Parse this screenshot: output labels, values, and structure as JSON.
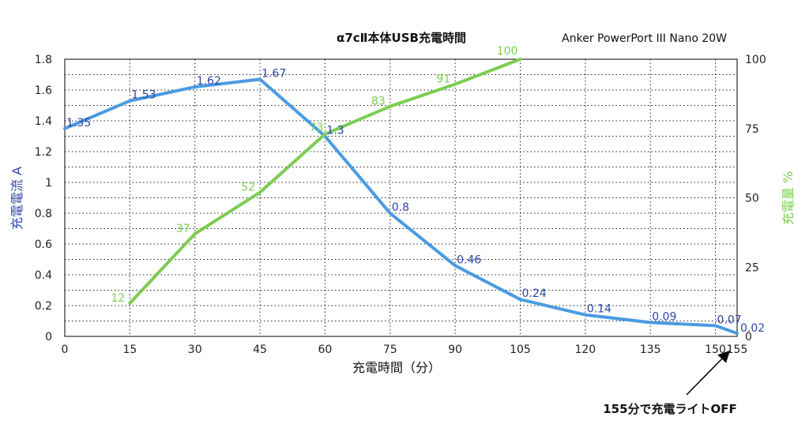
{
  "chart_data": {
    "type": "line",
    "title": "α7cⅡ本体USB充電時間",
    "subtitle": "Anker PowerPort III Nano 20W",
    "xlabel": "充電時間（分）",
    "ylabel_left": "充電電流 A",
    "ylabel_right": "充電量 %",
    "xlim": [
      0,
      155
    ],
    "ylim_left": [
      0,
      1.8
    ],
    "ylim_right": [
      0,
      100
    ],
    "x_ticks": [
      0,
      15,
      30,
      45,
      60,
      75,
      90,
      105,
      120,
      135,
      150,
      155
    ],
    "y_ticks_left": [
      "0",
      "0.2",
      "0.4",
      "0.6",
      "0.8",
      "1",
      "1.2",
      "1.4",
      "1.6",
      "1.8"
    ],
    "y_ticks_right": [
      "0",
      "25",
      "50",
      "75",
      "100"
    ],
    "grid": true,
    "series": [
      {
        "axis": "left",
        "color": "#4a9be2",
        "label_color": "#2e46a8",
        "x": [
          0,
          15,
          30,
          45,
          60,
          75,
          90,
          105,
          120,
          135,
          150,
          155
        ],
        "values": [
          1.35,
          1.53,
          1.62,
          1.67,
          1.3,
          0.8,
          0.46,
          0.24,
          0.14,
          0.09,
          0.07,
          0.02
        ],
        "labels": [
          "1.35",
          "1.53",
          "1.62",
          "1.67",
          "1.3",
          "0.8",
          "0.46",
          "0.24",
          "0.14",
          "0.09",
          "0.07",
          "0.02"
        ]
      },
      {
        "axis": "right",
        "color": "#7ccd52",
        "label_color": "#7ad24f",
        "x": [
          15,
          30,
          45,
          60,
          75,
          90,
          105
        ],
        "values": [
          12,
          37,
          52,
          73,
          83,
          91,
          100
        ],
        "labels": [
          "12",
          "37",
          "52",
          "73",
          "83",
          "91",
          "100"
        ]
      }
    ],
    "annotation": {
      "text": "155分で充電ライトOFF",
      "points_to_x": 155
    }
  }
}
